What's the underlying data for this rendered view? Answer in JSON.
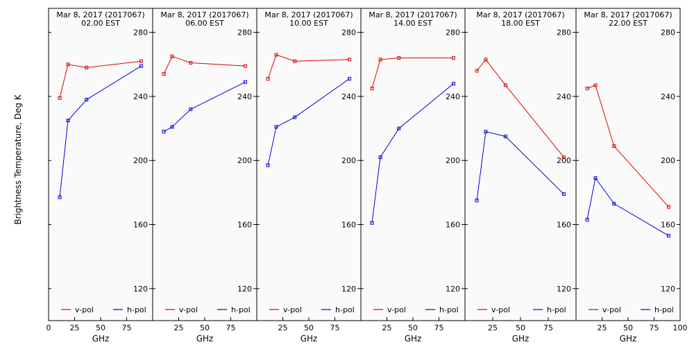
{
  "ylabel": "Brightness Temperature, Deg K",
  "colors": {
    "v_pol": "#e00000",
    "h_pol": "#0000e0",
    "background": "#fafafa",
    "axis": "#000000"
  },
  "chart_data": [
    {
      "type": "line",
      "title_line1": "Mar  8, 2017 (2017067)",
      "title_line2": "02.00 EST",
      "xlabel": "GHz",
      "xlim": [
        0,
        100
      ],
      "ylim": [
        100,
        295
      ],
      "x_ticks": [
        "0",
        "25",
        "50",
        "75"
      ],
      "y_ticks": [
        "120",
        "160",
        "200",
        "240",
        "280"
      ],
      "series": [
        {
          "name": "v-pol",
          "x": [
            10.7,
            18.7,
            36.5,
            89.0
          ],
          "y": [
            239,
            260,
            258,
            262
          ]
        },
        {
          "name": "h-pol",
          "x": [
            10.7,
            18.7,
            36.5,
            89.0
          ],
          "y": [
            177,
            225,
            238,
            259
          ]
        }
      ]
    },
    {
      "type": "line",
      "title_line1": "Mar  8, 2017 (2017067)",
      "title_line2": "06.00 EST",
      "xlabel": "GHz",
      "xlim": [
        0,
        100
      ],
      "ylim": [
        100,
        295
      ],
      "x_ticks": [
        "25",
        "50",
        "75"
      ],
      "y_ticks": [
        "120",
        "160",
        "200",
        "240",
        "280"
      ],
      "series": [
        {
          "name": "v-pol",
          "x": [
            10.7,
            18.7,
            36.5,
            89.0
          ],
          "y": [
            254,
            265,
            261,
            259
          ]
        },
        {
          "name": "h-pol",
          "x": [
            10.7,
            18.7,
            36.5,
            89.0
          ],
          "y": [
            218,
            221,
            232,
            249
          ]
        }
      ]
    },
    {
      "type": "line",
      "title_line1": "Mar  8, 2017 (2017067)",
      "title_line2": "10.00 EST",
      "xlabel": "GHz",
      "xlim": [
        0,
        100
      ],
      "ylim": [
        100,
        295
      ],
      "x_ticks": [
        "25",
        "50",
        "75"
      ],
      "y_ticks": [
        "120",
        "160",
        "200",
        "240",
        "280"
      ],
      "series": [
        {
          "name": "v-pol",
          "x": [
            10.7,
            18.7,
            36.5,
            89.0
          ],
          "y": [
            251,
            266,
            262,
            263
          ]
        },
        {
          "name": "h-pol",
          "x": [
            10.7,
            18.7,
            36.5,
            89.0
          ],
          "y": [
            197,
            221,
            227,
            251
          ]
        }
      ]
    },
    {
      "type": "line",
      "title_line1": "Mar  8, 2017 (2017067)",
      "title_line2": "14.00 EST",
      "xlabel": "GHz",
      "xlim": [
        0,
        100
      ],
      "ylim": [
        100,
        295
      ],
      "x_ticks": [
        "25",
        "50",
        "75"
      ],
      "y_ticks": [
        "120",
        "160",
        "200",
        "240",
        "280"
      ],
      "series": [
        {
          "name": "v-pol",
          "x": [
            10.7,
            18.7,
            36.5,
            89.0
          ],
          "y": [
            245,
            263,
            264,
            264
          ]
        },
        {
          "name": "h-pol",
          "x": [
            10.7,
            18.7,
            36.5,
            89.0
          ],
          "y": [
            161,
            202,
            220,
            248
          ]
        }
      ]
    },
    {
      "type": "line",
      "title_line1": "Mar  8, 2017 (2017067)",
      "title_line2": "18.00 EST",
      "xlabel": "GHz",
      "xlim": [
        0,
        100
      ],
      "ylim": [
        100,
        295
      ],
      "x_ticks": [
        "25",
        "50",
        "75"
      ],
      "y_ticks": [
        "120",
        "160",
        "200",
        "240",
        "280"
      ],
      "series": [
        {
          "name": "v-pol",
          "x": [
            10.7,
            18.7,
            36.5,
            89.0
          ],
          "y": [
            256,
            263,
            247,
            202
          ]
        },
        {
          "name": "h-pol",
          "x": [
            10.7,
            18.7,
            36.5,
            89.0
          ],
          "y": [
            175,
            218,
            215,
            179
          ]
        }
      ]
    },
    {
      "type": "line",
      "title_line1": "Mar  8, 2017 (2017067)",
      "title_line2": "22.00 EST",
      "xlabel": "GHz",
      "xlim": [
        0,
        100
      ],
      "ylim": [
        100,
        295
      ],
      "x_ticks": [
        "25",
        "50",
        "75",
        "100"
      ],
      "y_ticks": [
        "120",
        "160",
        "200",
        "240",
        "280"
      ],
      "series": [
        {
          "name": "v-pol",
          "x": [
            10.7,
            18.7,
            36.5,
            89.0
          ],
          "y": [
            245,
            247,
            209,
            171
          ]
        },
        {
          "name": "h-pol",
          "x": [
            10.7,
            18.7,
            36.5,
            89.0
          ],
          "y": [
            163,
            189,
            173,
            153
          ]
        }
      ]
    }
  ]
}
